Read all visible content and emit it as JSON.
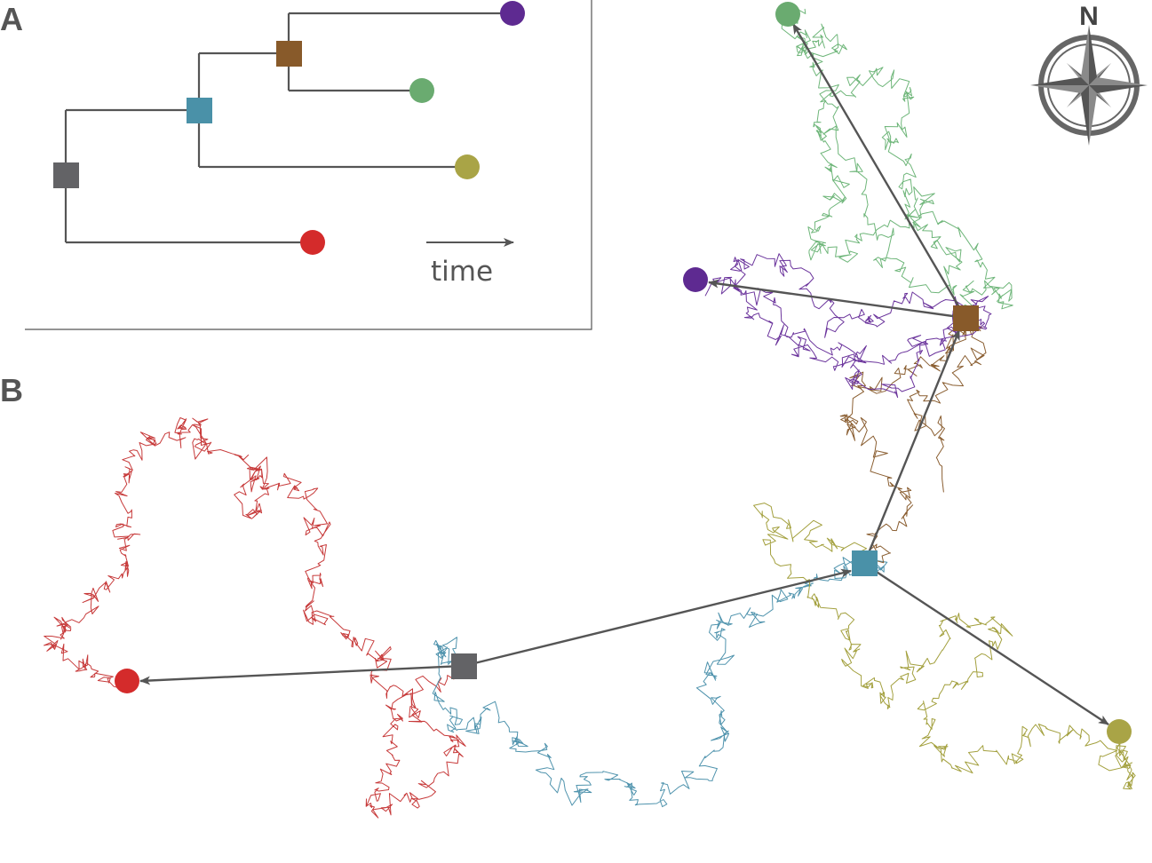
{
  "panel_a": {
    "label": "A",
    "time_label": "time"
  },
  "panel_b": {
    "label": "B"
  },
  "compass": {
    "north_label": "N",
    "icon": "compass-rose-icon"
  },
  "colors": {
    "line": "#555555",
    "root": "#636366",
    "blue": "#4a91a8",
    "brown": "#885a2a",
    "purple": "#5e2a91",
    "green": "#6aab70",
    "olive": "#a9a446",
    "red": "#d42b2b",
    "walk_red": "#c73a3a",
    "walk_blue": "#4f93ad",
    "walk_olive": "#a3a03e",
    "walk_brown": "#8a5e31",
    "walk_purple": "#6b349c",
    "walk_green": "#6fb67a"
  },
  "tree": {
    "nodes": [
      {
        "id": "root",
        "type": "ancestor",
        "color": "root"
      },
      {
        "id": "blue",
        "type": "ancestor",
        "color": "blue"
      },
      {
        "id": "brown",
        "type": "ancestor",
        "color": "brown"
      },
      {
        "id": "purple",
        "type": "tip",
        "color": "purple"
      },
      {
        "id": "green",
        "type": "tip",
        "color": "green"
      },
      {
        "id": "olive",
        "type": "tip",
        "color": "olive"
      },
      {
        "id": "red",
        "type": "tip",
        "color": "red"
      }
    ],
    "edges": [
      [
        "root",
        "blue"
      ],
      [
        "root",
        "red"
      ],
      [
        "blue",
        "brown"
      ],
      [
        "blue",
        "olive"
      ],
      [
        "brown",
        "purple"
      ],
      [
        "brown",
        "green"
      ]
    ]
  }
}
